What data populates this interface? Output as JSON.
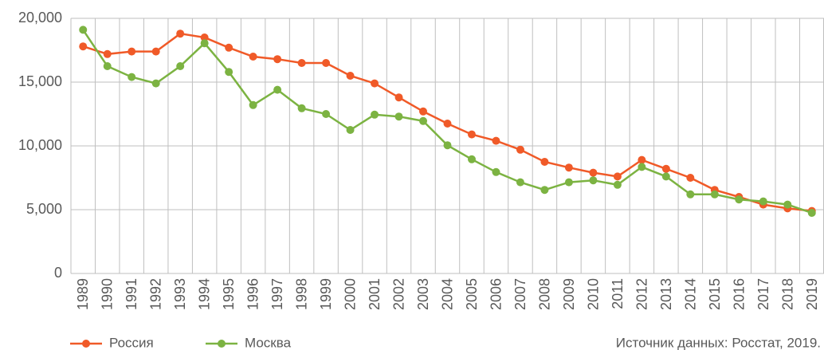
{
  "chart_data": {
    "type": "line",
    "categories": [
      "1989",
      "1990",
      "1991",
      "1992",
      "1993",
      "1994",
      "1995",
      "1996",
      "1997",
      "1998",
      "1999",
      "2000",
      "2001",
      "2002",
      "2003",
      "2004",
      "2005",
      "2006",
      "2007",
      "2008",
      "2009",
      "2010",
      "2011",
      "2012",
      "2013",
      "2014",
      "2015",
      "2016",
      "2017",
      "2018",
      "2019"
    ],
    "series": [
      {
        "name": "Россия",
        "color": "#f05a28",
        "values": [
          17800,
          17200,
          17400,
          17400,
          18800,
          18500,
          17700,
          17000,
          16800,
          16500,
          16500,
          15500,
          14900,
          13800,
          12700,
          11750,
          10900,
          10400,
          9700,
          8750,
          8300,
          7900,
          7600,
          8900,
          8200,
          7500,
          6550,
          6000,
          5400,
          5100,
          4900
        ]
      },
      {
        "name": "Москва",
        "color": "#7cb342",
        "values": [
          19100,
          16250,
          15400,
          14900,
          16250,
          18050,
          15800,
          13200,
          14400,
          12950,
          12500,
          11250,
          12450,
          12300,
          11950,
          10050,
          8950,
          7950,
          7150,
          6550,
          7150,
          7300,
          6950,
          8350,
          7600,
          6200,
          6200,
          5800,
          5650,
          5400,
          4750
        ]
      }
    ],
    "ylim": [
      0,
      20000
    ],
    "yticks": [
      0,
      {
        "value": 5000,
        "label": "5,000"
      },
      {
        "value": 10000,
        "label": "10,000"
      },
      {
        "value": 15000,
        "label": "15,000"
      },
      {
        "value": 20000,
        "label": "20,000"
      }
    ],
    "grid": true,
    "legend": "bottom-left",
    "source": "Источник данных: Росстат, 2019."
  }
}
